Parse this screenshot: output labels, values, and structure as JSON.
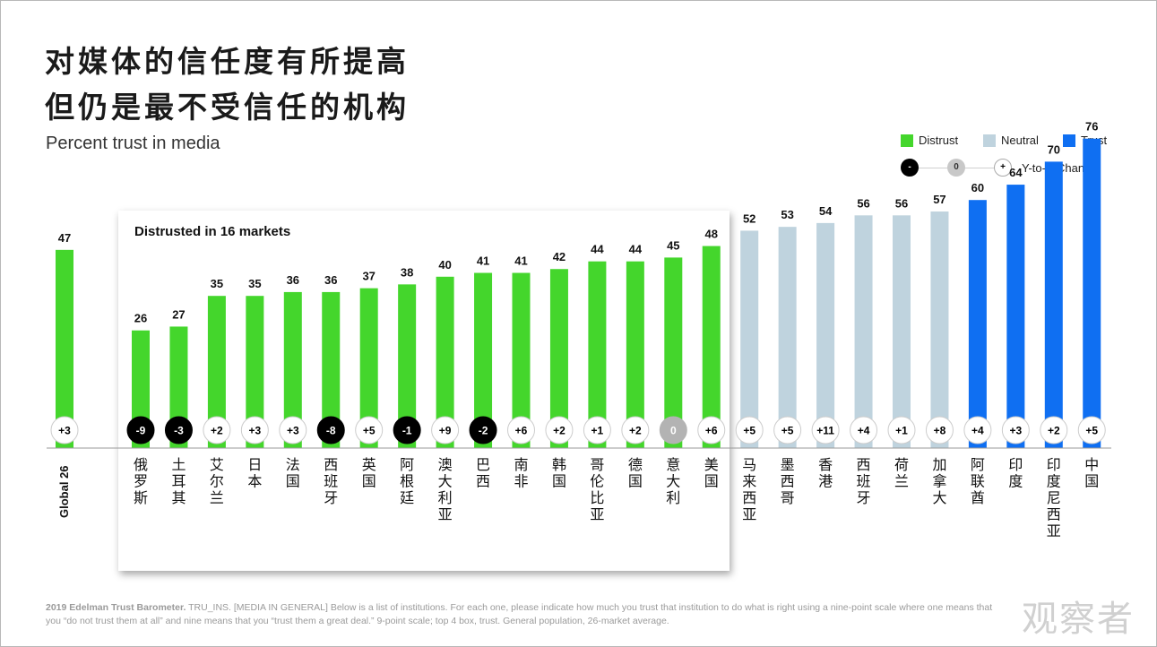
{
  "title_line1": "对媒体的信任度有所提高",
  "title_line2": "但仍是最不受信任的机构",
  "subtitle": "Percent trust in media",
  "legend": {
    "distrust": "Distrust",
    "neutral": "Neutral",
    "trust": "Trust",
    "change_label": "Y-to-Y Change",
    "minus": "-",
    "zero": "0",
    "plus": "+"
  },
  "colors": {
    "distrust": "#44d62c",
    "neutral": "#bfd3de",
    "trust": "#0f6ff2",
    "negative_change": "#000000",
    "zero_change": "#b3b3b3",
    "positive_change": "#ffffff"
  },
  "panel_label": "Distrusted in 16 markets",
  "chart_data": {
    "type": "bar",
    "title": "Percent trust in media",
    "ylim": [
      0,
      100
    ],
    "categories": [
      "Global 26",
      "俄罗斯",
      "土耳其",
      "艾尔兰",
      "日本",
      "法国",
      "西班牙",
      "英国",
      "阿根廷",
      "澳大利亚",
      "巴西",
      "南非",
      "韩国",
      "哥伦比亚",
      "德国",
      "意大利",
      "美国",
      "马来西亚",
      "墨西哥",
      "香港",
      "西班牙",
      "荷兰",
      "加拿大",
      "阿联酋",
      "印度",
      "印度尼西亚",
      "中国"
    ],
    "values": [
      47,
      26,
      27,
      35,
      35,
      36,
      36,
      37,
      38,
      40,
      41,
      41,
      42,
      44,
      44,
      45,
      48,
      52,
      53,
      54,
      56,
      56,
      57,
      60,
      64,
      70,
      76
    ],
    "changes": [
      "+3",
      "-9",
      "-3",
      "+2",
      "+3",
      "+3",
      "-8",
      "+5",
      "-1",
      "+9",
      "-2",
      "+6",
      "+2",
      "+1",
      "+2",
      "0",
      "+6",
      "+5",
      "+5",
      "+11",
      "+4",
      "+1",
      "+8",
      "+4",
      "+3",
      "+2",
      "+5"
    ],
    "groups": [
      "distrust",
      "distrust",
      "distrust",
      "distrust",
      "distrust",
      "distrust",
      "distrust",
      "distrust",
      "distrust",
      "distrust",
      "distrust",
      "distrust",
      "distrust",
      "distrust",
      "distrust",
      "distrust",
      "distrust",
      "neutral",
      "neutral",
      "neutral",
      "neutral",
      "neutral",
      "neutral",
      "trust",
      "trust",
      "trust",
      "trust"
    ]
  },
  "footnote_bold": "2019 Edelman Trust Barometer.",
  "footnote_text": " TRU_INS. [MEDIA IN GENERAL] Below is a list of institutions. For each one, please indicate how much you trust that institution to do what is right using a nine-point scale where one means that you “do not trust them at all” and nine means that you “trust them a great deal.” 9-point scale; top 4 box, trust. General population, 26-market average.",
  "watermark": "观察者"
}
